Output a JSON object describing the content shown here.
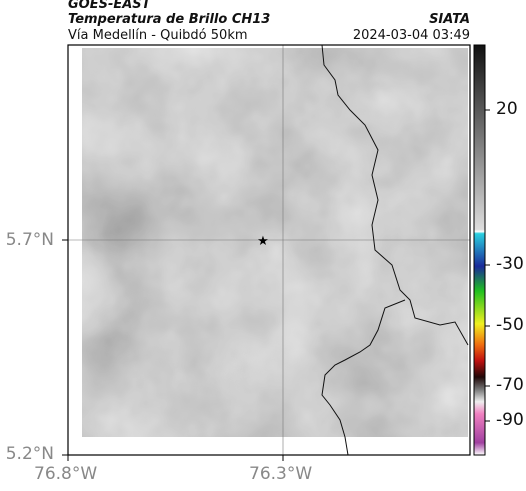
{
  "header": {
    "source": "GOES-EAST",
    "title": "Temperatura de Brillo CH13",
    "subtitle": "Vía Medellín - Quibdó 50km",
    "agency": "SIATA",
    "timestamp": "2024-03-04 03:49"
  },
  "map": {
    "lat_labels": [
      "5.7°N",
      "5.2°N"
    ],
    "lon_labels": [
      "76.8°W",
      "76.3°W"
    ]
  },
  "colorbar": {
    "labels": [
      "20",
      "-30",
      "-50",
      "-70",
      "-90"
    ]
  }
}
